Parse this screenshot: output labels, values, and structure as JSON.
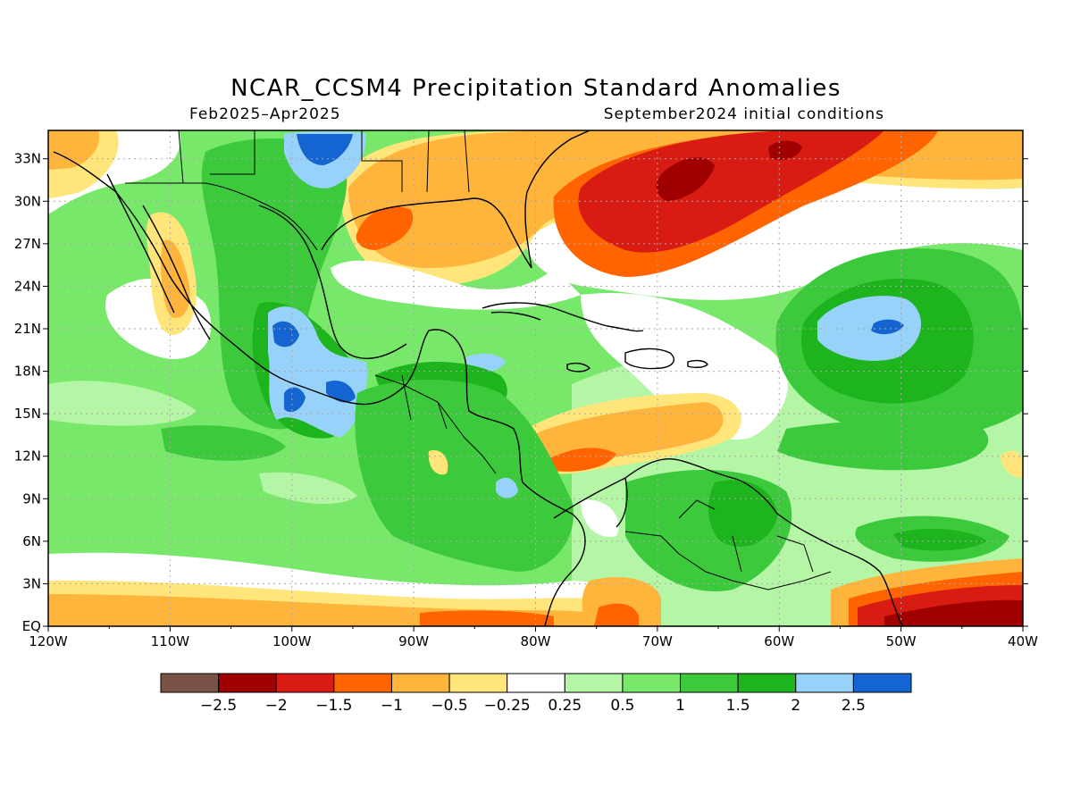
{
  "title": "NCAR_CCSM4 Precipitation Standard Anomalies",
  "subtitle_left": "Feb2025–Apr2025",
  "subtitle_right": "September2024 initial conditions",
  "axes": {
    "lon_labels": [
      "120W",
      "110W",
      "100W",
      "90W",
      "80W",
      "70W",
      "60W",
      "50W",
      "40W"
    ],
    "lat_labels": [
      "EQ",
      "3N",
      "6N",
      "9N",
      "12N",
      "15N",
      "18N",
      "21N",
      "24N",
      "27N",
      "30N",
      "33N"
    ],
    "lon_range": [
      -120,
      -40
    ],
    "lat_range": [
      0,
      35
    ]
  },
  "colorbar": {
    "labels": [
      "−2.5",
      "−2",
      "−1.5",
      "−1",
      "−0.5",
      "−0.25",
      "0.25",
      "0.5",
      "1",
      "1.5",
      "2",
      "2.5"
    ],
    "colors": [
      "#7a5346",
      "#a00000",
      "#d81c14",
      "#ff6400",
      "#ffb43c",
      "#ffe57a",
      "#ffffff",
      "#b4f5a6",
      "#78e86a",
      "#3cca3c",
      "#1eb41e",
      "#96d2fa",
      "#1464d2"
    ]
  },
  "palette": {
    "white": "#ffffff",
    "lightgreen": "#b4f5a6",
    "green": "#78e86a",
    "midgreen": "#3cca3c",
    "darkgreen": "#1eb41e",
    "lightblue": "#96d2fa",
    "blue": "#1464d2",
    "yellow": "#ffe57a",
    "lightorange": "#ffb43c",
    "orange": "#ff6400",
    "red": "#d81c14",
    "darkred": "#a00000"
  }
}
